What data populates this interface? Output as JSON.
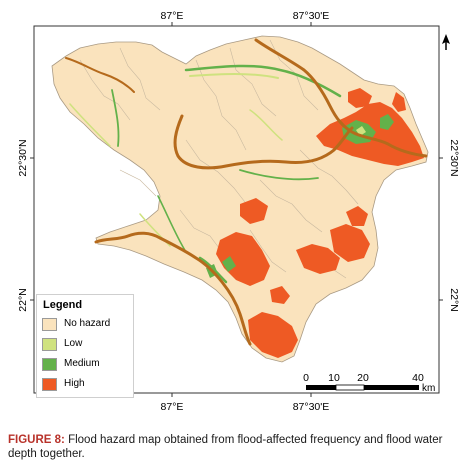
{
  "map": {
    "colors": {
      "no_hazard": "#fae3bd",
      "low": "#cfe27f",
      "medium": "#63b14a",
      "high": "#ee5a24",
      "river": "#b56a1c",
      "boundary": "#c9b9a0"
    },
    "graticule": {
      "top_labels": [
        "87°E",
        "87°30'E"
      ],
      "bottom_labels": [
        "87°E",
        "87°30'E"
      ],
      "left_labels": [
        "22°30'N",
        "22°N"
      ],
      "right_labels": [
        "22°30'N",
        "22°N"
      ]
    },
    "legend": {
      "title": "Legend",
      "items": [
        {
          "label": "No hazard",
          "color": "#fae3bd"
        },
        {
          "label": "Low",
          "color": "#cfe27f"
        },
        {
          "label": "Medium",
          "color": "#63b14a"
        },
        {
          "label": "High",
          "color": "#ee5a24"
        }
      ]
    },
    "scalebar": {
      "labels": [
        "0",
        "10",
        "20",
        "40"
      ],
      "unit": "km"
    },
    "north_arrow": "north-arrow-icon"
  },
  "caption": {
    "figure_label": "FIGURE 8:",
    "text": " Flood hazard map obtained from flood-affected frequency and flood water depth together."
  }
}
